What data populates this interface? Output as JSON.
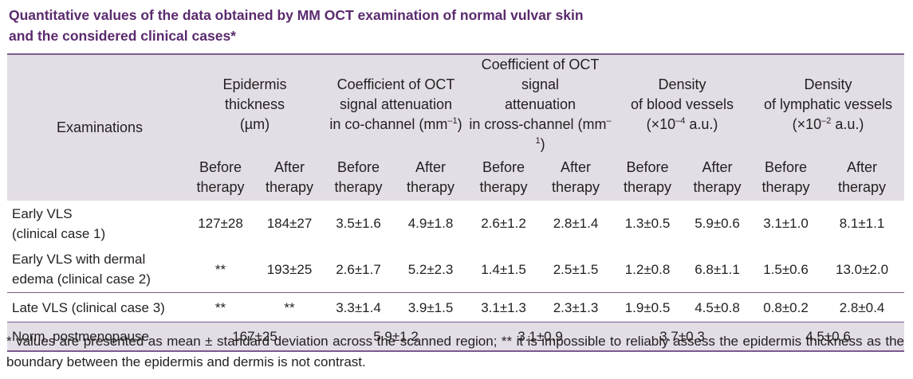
{
  "caption": {
    "line1": "Quantitative values of the data obtained by MM OCT examination of normal vulvar skin",
    "line2": "and the considered clinical cases*"
  },
  "header": {
    "examinations": "Examinations",
    "groups": [
      {
        "l1": "Epidermis",
        "l2": "thickness",
        "l3": "(µm)"
      },
      {
        "l1": "Coefficient of OCT",
        "l2": "signal attenuation",
        "l3a": "in co-channel (mm",
        "l3sup": "–1",
        "l3b": ")"
      },
      {
        "l1": "Coefficient of OCT signal",
        "l2": "attenuation",
        "l3a": "in cross-channel (mm",
        "l3sup": "–1",
        "l3b": ")"
      },
      {
        "l1": "Density",
        "l2": "of blood vessels",
        "l3a": "(×10",
        "l3sup": "–4",
        "l3b": " a.u.)"
      },
      {
        "l1": "Density",
        "l2": "of lymphatic vessels",
        "l3a": "(×10",
        "l3sup": "–2",
        "l3b": " a.u.)"
      }
    ],
    "before_l1": "Before",
    "before_l2": "therapy",
    "after_l1": "After",
    "after_l2": "therapy"
  },
  "rows": [
    {
      "label_l1": "Early VLS",
      "label_l2": "(clinical case 1)",
      "values": [
        "127±28",
        "184±27",
        "3.5±1.6",
        "4.9±1.8",
        "2.6±1.2",
        "2.8±1.4",
        "1.3±0.5",
        "5.9±0.6",
        "3.1±1.0",
        "8.1±1.1"
      ]
    },
    {
      "label_l1": "Early VLS with dermal",
      "label_l2": "edema (clinical case 2)",
      "values": [
        "**",
        "193±25",
        "2.6±1.7",
        "5.2±2.3",
        "1.4±1.5",
        "2.5±1.5",
        "1.2±0.8",
        "6.8±1.1",
        "1.5±0.6",
        "13.0±2.0"
      ]
    },
    {
      "label_l1": "Late VLS (clinical case 3)",
      "values": [
        "**",
        "**",
        "3.3±1.4",
        "3.9±1.5",
        "3.1±1.3",
        "2.3±1.3",
        "1.9±0.5",
        "4.5±0.8",
        "0.8±0.2",
        "2.8±0.4"
      ]
    }
  ],
  "norm": {
    "label": "Norm, postmenopause",
    "values": [
      "167±25",
      "5.9±1.2",
      "3.1±0.9",
      "3.7±0.3",
      "4.5±0.6"
    ]
  },
  "footnote": "* values are presented as mean ± standard deviation across the scanned region; ** it is impossible to reliably assess the epidermis thickness as the boundary between the epidermis and dermis is not contrast."
}
